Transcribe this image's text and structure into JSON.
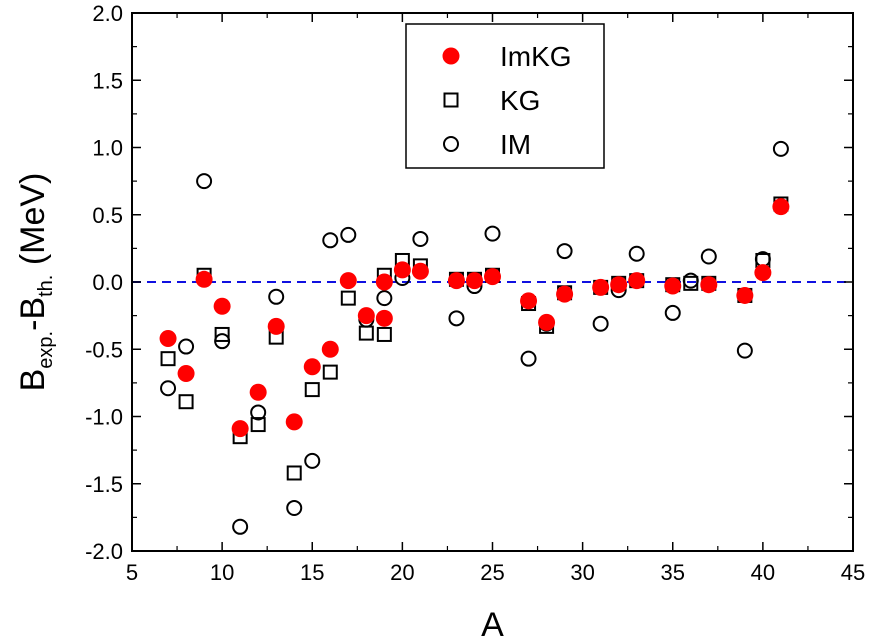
{
  "chart_data": {
    "type": "scatter",
    "xlabel": "A",
    "ylabel": {
      "parts": [
        {
          "text": "B",
          "sub": false
        },
        {
          "text": "exp.",
          "sub": true
        },
        {
          "text": "-B",
          "sub": false
        },
        {
          "text": "th.",
          "sub": true
        },
        {
          "text": " (MeV)",
          "sub": false
        }
      ]
    },
    "xlim": [
      5,
      45
    ],
    "ylim": [
      -2.0,
      2.0
    ],
    "xticks": [
      "5",
      "10",
      "15",
      "20",
      "25",
      "30",
      "35",
      "40",
      "45"
    ],
    "yticks": [
      "-2.0",
      "-1.5",
      "-1.0",
      "-0.5",
      "0.0",
      "0.5",
      "1.0",
      "1.5",
      "2.0"
    ],
    "legend_position": "top-center",
    "reference_line": {
      "y": 0,
      "style": "dashed",
      "color": "#1010e0"
    },
    "series": [
      {
        "name": "ImKG",
        "marker": "filled-circle",
        "color": "#ff0000",
        "points": [
          [
            7,
            -0.42
          ],
          [
            8,
            -0.68
          ],
          [
            9,
            0.02
          ],
          [
            10,
            -0.18
          ],
          [
            11,
            -1.09
          ],
          [
            12,
            -0.82
          ],
          [
            13,
            -0.33
          ],
          [
            14,
            -1.04
          ],
          [
            15,
            -0.63
          ],
          [
            16,
            -0.5
          ],
          [
            17,
            0.01
          ],
          [
            18,
            -0.25
          ],
          [
            19,
            -0.27
          ],
          [
            19,
            0.0
          ],
          [
            20,
            0.09
          ],
          [
            21,
            0.08
          ],
          [
            23,
            0.01
          ],
          [
            24,
            0.01
          ],
          [
            25,
            0.04
          ],
          [
            27,
            -0.14
          ],
          [
            28,
            -0.3
          ],
          [
            29,
            -0.09
          ],
          [
            31,
            -0.04
          ],
          [
            32,
            -0.02
          ],
          [
            33,
            0.01
          ],
          [
            35,
            -0.03
          ],
          [
            37,
            -0.02
          ],
          [
            39,
            -0.1
          ],
          [
            40,
            0.07
          ],
          [
            41,
            0.56
          ]
        ]
      },
      {
        "name": "KG",
        "marker": "open-square",
        "color": "#000000",
        "points": [
          [
            7,
            -0.57
          ],
          [
            8,
            -0.89
          ],
          [
            9,
            0.05
          ],
          [
            10,
            -0.39
          ],
          [
            11,
            -1.15
          ],
          [
            12,
            -1.06
          ],
          [
            13,
            -0.41
          ],
          [
            14,
            -1.42
          ],
          [
            15,
            -0.8
          ],
          [
            16,
            -0.67
          ],
          [
            17,
            -0.12
          ],
          [
            18,
            -0.38
          ],
          [
            19,
            -0.39
          ],
          [
            19,
            0.05
          ],
          [
            20,
            0.16
          ],
          [
            21,
            0.12
          ],
          [
            23,
            0.02
          ],
          [
            24,
            0.02
          ],
          [
            25,
            0.05
          ],
          [
            27,
            -0.16
          ],
          [
            28,
            -0.33
          ],
          [
            29,
            -0.08
          ],
          [
            31,
            -0.04
          ],
          [
            32,
            -0.01
          ],
          [
            33,
            0.01
          ],
          [
            35,
            -0.02
          ],
          [
            36,
            -0.01
          ],
          [
            37,
            -0.01
          ],
          [
            39,
            -0.1
          ],
          [
            40,
            0.16
          ],
          [
            41,
            0.58
          ]
        ]
      },
      {
        "name": "IM",
        "marker": "open-circle",
        "color": "#000000",
        "points": [
          [
            7,
            -0.79
          ],
          [
            8,
            -0.48
          ],
          [
            9,
            0.75
          ],
          [
            10,
            -0.44
          ],
          [
            11,
            -1.82
          ],
          [
            12,
            -0.97
          ],
          [
            13,
            -0.11
          ],
          [
            14,
            -1.68
          ],
          [
            15,
            -1.33
          ],
          [
            16,
            0.31
          ],
          [
            17,
            0.35
          ],
          [
            18,
            -0.28
          ],
          [
            19,
            -0.12
          ],
          [
            20,
            0.03
          ],
          [
            21,
            0.32
          ],
          [
            23,
            -0.27
          ],
          [
            24,
            -0.03
          ],
          [
            25,
            0.36
          ],
          [
            27,
            -0.57
          ],
          [
            28,
            -0.31
          ],
          [
            29,
            0.23
          ],
          [
            31,
            -0.31
          ],
          [
            32,
            -0.06
          ],
          [
            33,
            0.21
          ],
          [
            35,
            -0.23
          ],
          [
            36,
            0.01
          ],
          [
            37,
            0.19
          ],
          [
            39,
            -0.51
          ],
          [
            40,
            0.17
          ],
          [
            41,
            0.99
          ]
        ]
      }
    ]
  }
}
